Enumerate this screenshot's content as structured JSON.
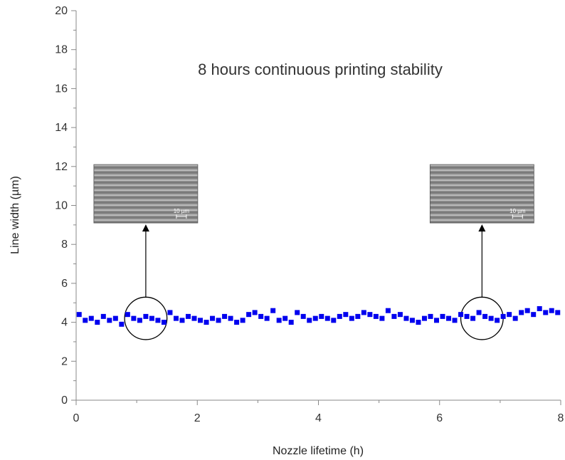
{
  "chart_data": {
    "type": "scatter",
    "title": "8 hours continuous printing stability",
    "xlabel": "Nozzle lifetime (h)",
    "ylabel": "Line width (µm)",
    "xlim": [
      0,
      8
    ],
    "ylim": [
      0,
      20
    ],
    "xticks": [
      "0",
      "2",
      "4",
      "6",
      "8"
    ],
    "yticks": [
      "0",
      "2",
      "4",
      "6",
      "8",
      "10",
      "12",
      "14",
      "16",
      "18",
      "20"
    ],
    "grid": false,
    "legend": "none",
    "series": [
      {
        "color": "#0000ee",
        "marker": "square",
        "x": [
          0.05,
          0.15,
          0.25,
          0.35,
          0.45,
          0.55,
          0.65,
          0.75,
          0.85,
          0.95,
          1.05,
          1.15,
          1.25,
          1.35,
          1.45,
          1.55,
          1.65,
          1.75,
          1.85,
          1.95,
          2.05,
          2.15,
          2.25,
          2.35,
          2.45,
          2.55,
          2.65,
          2.75,
          2.85,
          2.95,
          3.05,
          3.15,
          3.25,
          3.35,
          3.45,
          3.55,
          3.65,
          3.75,
          3.85,
          3.95,
          4.05,
          4.15,
          4.25,
          4.35,
          4.45,
          4.55,
          4.65,
          4.75,
          4.85,
          4.95,
          5.05,
          5.15,
          5.25,
          5.35,
          5.45,
          5.55,
          5.65,
          5.75,
          5.85,
          5.95,
          6.05,
          6.15,
          6.25,
          6.35,
          6.45,
          6.55,
          6.65,
          6.75,
          6.85,
          6.95,
          7.05,
          7.15,
          7.25,
          7.35,
          7.45,
          7.55,
          7.65,
          7.75,
          7.85,
          7.95
        ],
        "y": [
          4.4,
          4.1,
          4.2,
          4.0,
          4.3,
          4.1,
          4.2,
          3.9,
          4.4,
          4.2,
          4.1,
          4.3,
          4.2,
          4.1,
          4.0,
          4.5,
          4.2,
          4.1,
          4.3,
          4.2,
          4.1,
          4.0,
          4.2,
          4.1,
          4.3,
          4.2,
          4.0,
          4.1,
          4.4,
          4.5,
          4.3,
          4.2,
          4.6,
          4.1,
          4.2,
          4.0,
          4.5,
          4.3,
          4.1,
          4.2,
          4.3,
          4.2,
          4.1,
          4.3,
          4.4,
          4.2,
          4.3,
          4.5,
          4.4,
          4.3,
          4.2,
          4.6,
          4.3,
          4.4,
          4.2,
          4.1,
          4.0,
          4.2,
          4.3,
          4.1,
          4.3,
          4.2,
          4.1,
          4.4,
          4.3,
          4.2,
          4.5,
          4.3,
          4.2,
          4.1,
          4.3,
          4.4,
          4.2,
          4.5,
          4.6,
          4.4,
          4.7,
          4.5,
          4.6,
          4.5
        ]
      }
    ],
    "annotations": [
      {
        "circle_center": [
          1.15,
          4.2
        ],
        "circle_radius_h": 0.35,
        "inset_center_x": 1.15,
        "inset_y_range": [
          9.1,
          12.1
        ],
        "scalebar": "10 µm"
      },
      {
        "circle_center": [
          6.7,
          4.2
        ],
        "circle_radius_h": 0.35,
        "inset_center_x": 6.7,
        "inset_y_range": [
          9.1,
          12.1
        ],
        "scalebar": "10 µm"
      }
    ]
  }
}
